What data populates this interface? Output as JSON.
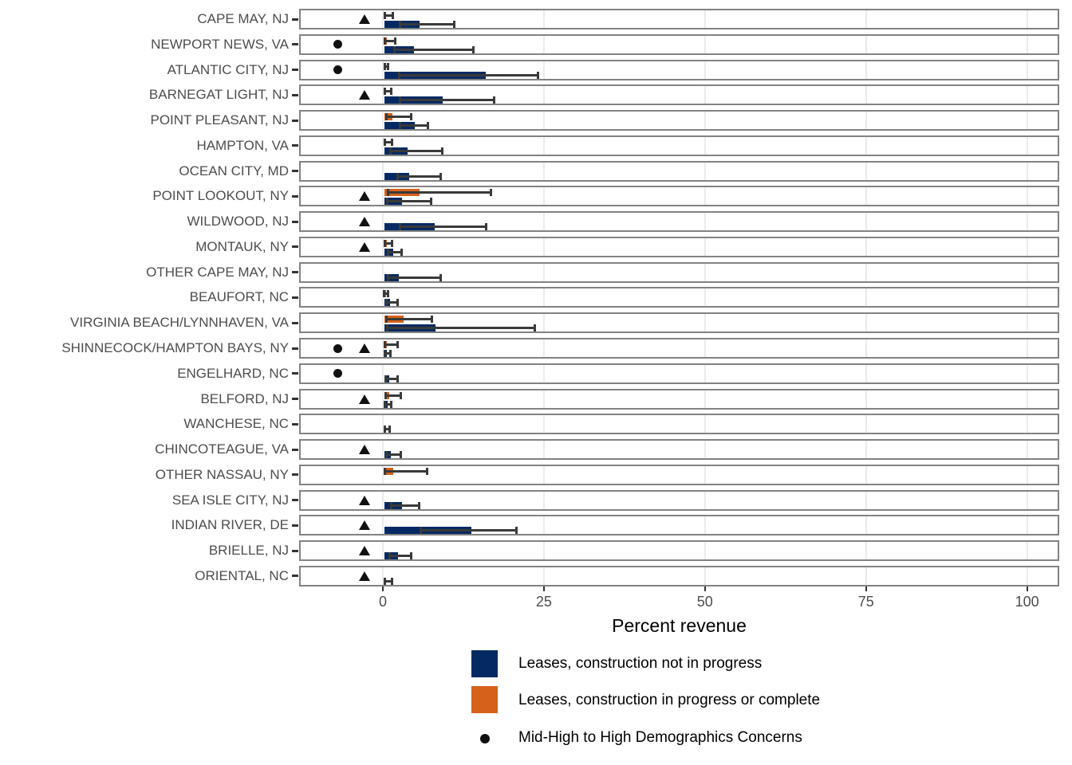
{
  "colors": {
    "navy": "#052a63",
    "orange": "#d6611a",
    "marker_black": "#111111",
    "error_bar": "#3a3a3a",
    "axis_text_gray": "#4d4d4d",
    "panel_border_gray": "#828282",
    "gridline_gray": "#ebebeb"
  },
  "legend": {
    "items": [
      {
        "swatch": "navy-square",
        "label": "Leases, construction not in progress"
      },
      {
        "swatch": "orange-square",
        "label": "Leases, construction in progress or complete"
      },
      {
        "swatch": "black-dot",
        "label": "Mid-High to High Demographics Concerns"
      }
    ]
  },
  "chart_data": {
    "type": "bar",
    "title": "",
    "xlabel": "Percent revenue",
    "ylabel": "",
    "x_ticks": [
      0,
      25,
      50,
      75,
      100
    ],
    "x_domain": [
      -13,
      105
    ],
    "grid": "major-vertical-only",
    "legend_position": "bottom",
    "orientation": "horizontal",
    "marker_x": {
      "circle": -7.2,
      "triangle": -3.1
    },
    "series_meta": [
      {
        "id": "ip",
        "name": "Leases, construction in progress or complete",
        "color_key": "orange"
      },
      {
        "id": "nip",
        "name": "Leases, construction not in progress",
        "color_key": "navy"
      }
    ],
    "rows": [
      {
        "label": "CAPE MAY, NJ",
        "ip": [
          0.3,
          0.1,
          1.3
        ],
        "nip": [
          5.5,
          2.4,
          10.8
        ],
        "circle": false,
        "triangle": true
      },
      {
        "label": "NEWPORT NEWS, VA",
        "ip": [
          0.4,
          0.1,
          1.7
        ],
        "nip": [
          4.6,
          1.5,
          13.8
        ],
        "circle": true,
        "triangle": false
      },
      {
        "label": "ATLANTIC CITY, NJ",
        "ip": [
          0.2,
          0.05,
          0.6
        ],
        "nip": [
          15.7,
          2.3,
          23.8
        ],
        "circle": true,
        "triangle": false
      },
      {
        "label": "BARNEGAT LIGHT, NJ",
        "ip": [
          0.3,
          0.1,
          1.1
        ],
        "nip": [
          9.0,
          2.4,
          17.0
        ],
        "circle": false,
        "triangle": true
      },
      {
        "label": "POINT PLEASANT, NJ",
        "ip": [
          1.2,
          0.3,
          4.2
        ],
        "nip": [
          4.7,
          2.4,
          6.8
        ],
        "circle": false,
        "triangle": false
      },
      {
        "label": "HAMPTON, VA",
        "ip": [
          0.15,
          0.05,
          1.2
        ],
        "nip": [
          3.6,
          0.9,
          9.0
        ],
        "circle": false,
        "triangle": false
      },
      {
        "label": "OCEAN CITY, MD",
        "ip": null,
        "nip": [
          3.8,
          2.1,
          8.7
        ],
        "circle": false,
        "triangle": false
      },
      {
        "label": "POINT LOOKOUT, NY",
        "ip": [
          5.4,
          0.5,
          16.5
        ],
        "nip": [
          2.7,
          0.4,
          7.2
        ],
        "circle": false,
        "triangle": true
      },
      {
        "label": "WILDWOOD, NJ",
        "ip": null,
        "nip": [
          7.8,
          2.4,
          15.8
        ],
        "circle": false,
        "triangle": true
      },
      {
        "label": "MONTAUK, NY",
        "ip": [
          0.4,
          0.1,
          1.2
        ],
        "nip": [
          1.4,
          0.5,
          2.7
        ],
        "circle": false,
        "triangle": true
      },
      {
        "label": "OTHER CAPE MAY, NJ",
        "ip": null,
        "nip": [
          2.2,
          0.5,
          8.7
        ],
        "circle": false,
        "triangle": false
      },
      {
        "label": "BEAUFORT, NC",
        "ip": [
          0.1,
          0.0,
          0.5
        ],
        "nip": [
          0.9,
          0.3,
          2.1
        ],
        "circle": false,
        "triangle": false
      },
      {
        "label": "VIRGINIA BEACH/LYNNHAVEN, VA",
        "ip": [
          3.0,
          0.3,
          7.4
        ],
        "nip": [
          7.9,
          0.4,
          23.3
        ],
        "circle": false,
        "triangle": false
      },
      {
        "label": "SHINNECOCK/HAMPTON BAYS, NY",
        "ip": [
          0.4,
          0.1,
          2.1
        ],
        "nip": [
          0.4,
          0.1,
          0.9
        ],
        "circle": true,
        "triangle": true
      },
      {
        "label": "ENGELHARD, NC",
        "ip": null,
        "nip": [
          0.7,
          0.2,
          2.1
        ],
        "circle": true,
        "triangle": false
      },
      {
        "label": "BELFORD, NJ",
        "ip": [
          0.8,
          0.2,
          2.6
        ],
        "nip": [
          0.5,
          0.1,
          1.0
        ],
        "circle": false,
        "triangle": true
      },
      {
        "label": "WANCHESE, NC",
        "ip": null,
        "nip": [
          0.3,
          0.1,
          0.8
        ],
        "circle": false,
        "triangle": false
      },
      {
        "label": "CHINCOTEAGUE, VA",
        "ip": null,
        "nip": [
          1.0,
          0.3,
          2.6
        ],
        "circle": false,
        "triangle": true
      },
      {
        "label": "OTHER NASSAU, NY",
        "ip": [
          1.4,
          0.1,
          6.6
        ],
        "nip": null,
        "circle": false,
        "triangle": false
      },
      {
        "label": "SEA ISLE CITY, NJ",
        "ip": null,
        "nip": [
          2.7,
          1.0,
          5.4
        ],
        "circle": false,
        "triangle": true
      },
      {
        "label": "INDIAN RIVER, DE",
        "ip": null,
        "nip": [
          13.5,
          5.6,
          20.5
        ],
        "circle": false,
        "triangle": true
      },
      {
        "label": "BRIELLE, NJ",
        "ip": null,
        "nip": [
          2.1,
          0.8,
          4.2
        ],
        "circle": false,
        "triangle": true
      },
      {
        "label": "ORIENTAL, NC",
        "ip": null,
        "nip": [
          0.3,
          0.1,
          1.2
        ],
        "circle": false,
        "triangle": true
      }
    ]
  }
}
